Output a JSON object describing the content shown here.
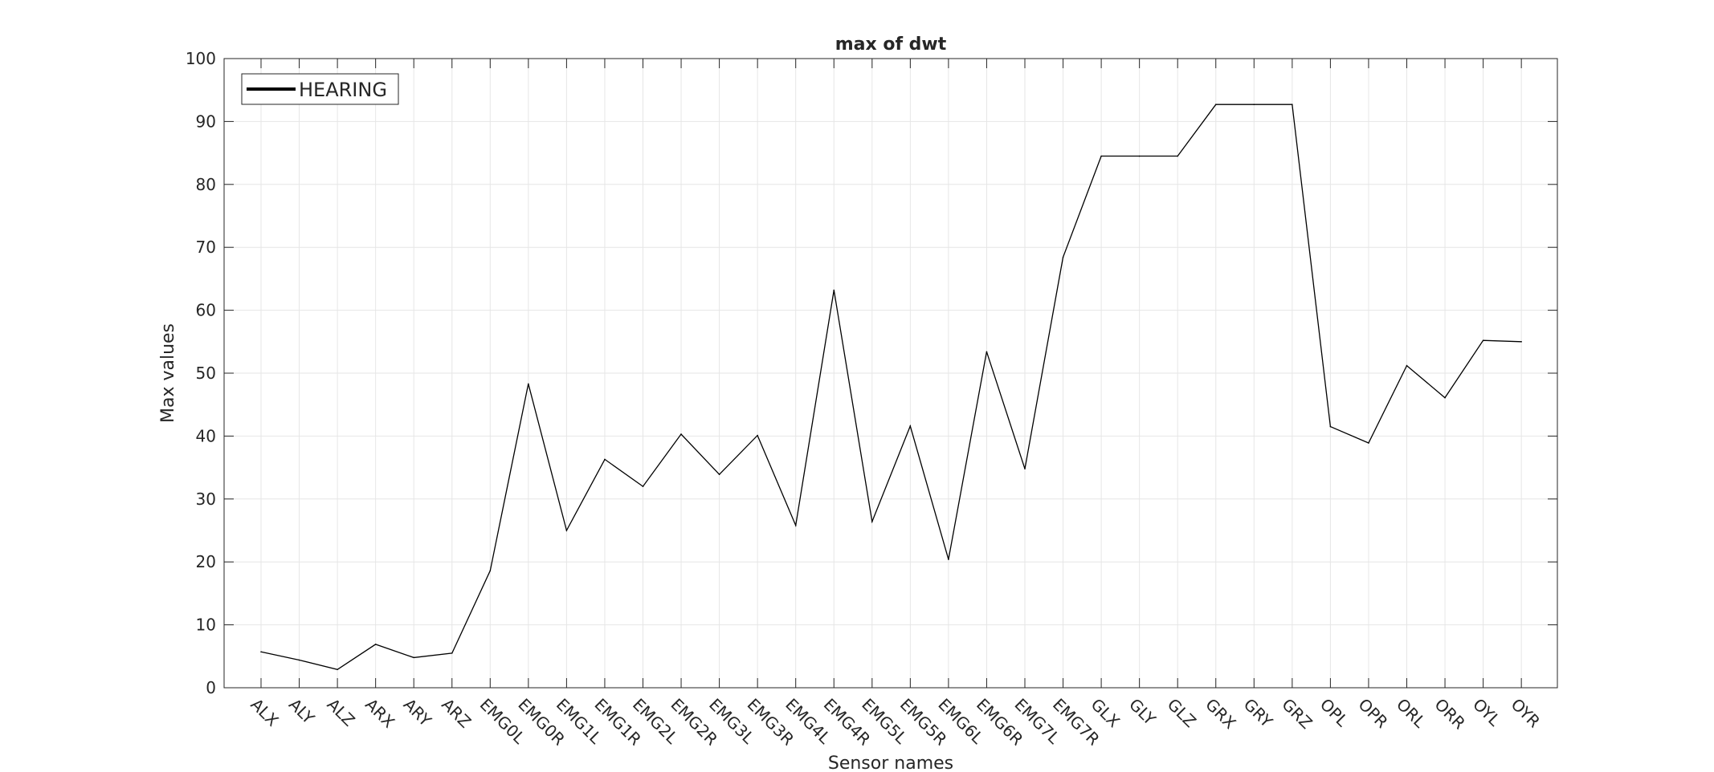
{
  "chart_data": {
    "type": "line",
    "title": "max of dwt",
    "xlabel": "Sensor names",
    "ylabel": "Max values",
    "ylim": [
      0,
      100
    ],
    "yticks": [
      0,
      10,
      20,
      30,
      40,
      50,
      60,
      70,
      80,
      90,
      100
    ],
    "grid": true,
    "legend_position": "top-left",
    "colors": {
      "line": "#000000",
      "grid": "#e6e6e6",
      "axes": "#262626",
      "background": "#ffffff"
    },
    "categories": [
      "ALX",
      "ALY",
      "ALZ",
      "ARX",
      "ARY",
      "ARZ",
      "EMG0L",
      "EMG0R",
      "EMG1L",
      "EMG1R",
      "EMG2L",
      "EMG2R",
      "EMG3L",
      "EMG3R",
      "EMG4L",
      "EMG4R",
      "EMG5L",
      "EMG5R",
      "EMG6L",
      "EMG6R",
      "EMG7L",
      "EMG7R",
      "GLX",
      "GLY",
      "GLZ",
      "GRX",
      "GRY",
      "GRZ",
      "OPL",
      "OPR",
      "ORL",
      "ORR",
      "OYL",
      "OYR"
    ],
    "series": [
      {
        "name": "HEARING",
        "values": [
          5.7,
          4.4,
          2.9,
          6.9,
          4.8,
          5.5,
          18.6,
          48.3,
          25.0,
          36.3,
          32.0,
          40.3,
          33.9,
          40.1,
          25.8,
          63.2,
          26.4,
          41.6,
          20.4,
          53.4,
          34.8,
          68.4,
          84.5,
          84.5,
          84.5,
          92.7,
          92.7,
          92.7,
          41.5,
          38.9,
          51.2,
          46.1,
          55.2,
          55.0
        ]
      }
    ]
  }
}
